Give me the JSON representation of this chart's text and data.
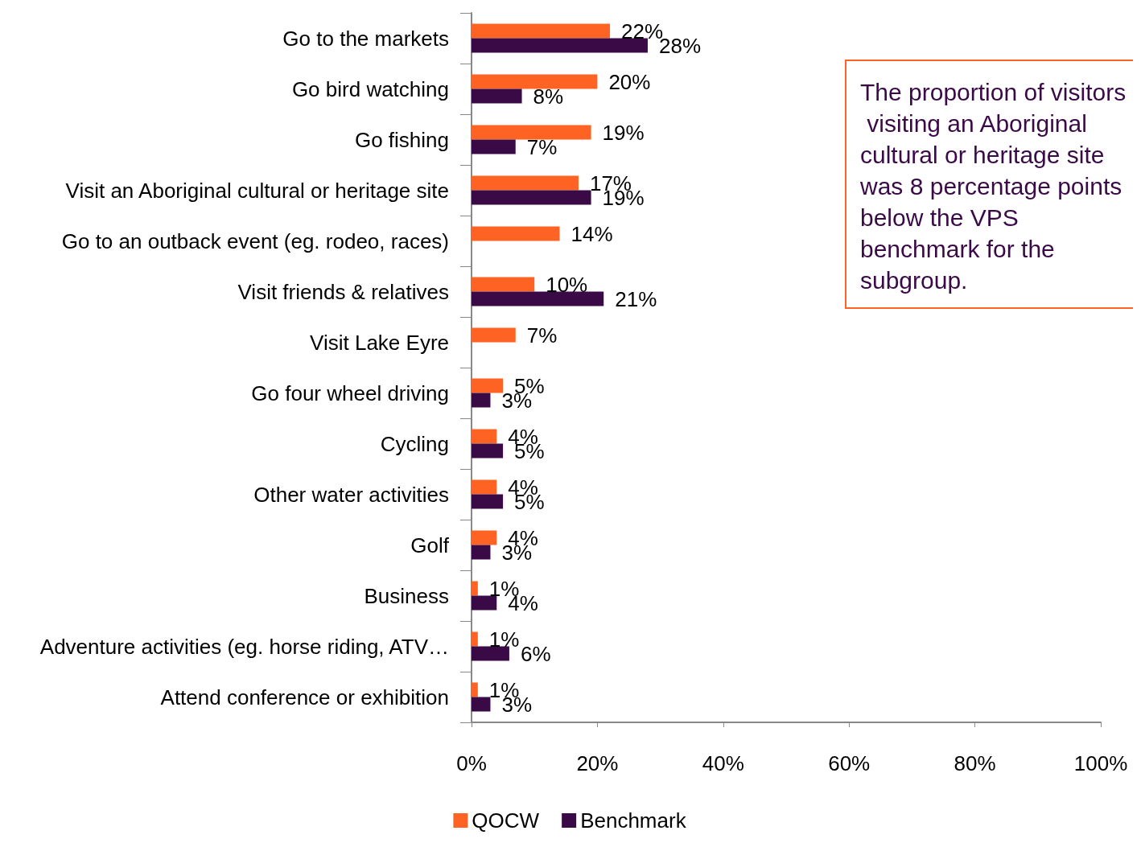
{
  "chart_data": {
    "type": "bar",
    "orientation": "horizontal",
    "categories": [
      "Go to the markets",
      "Go bird watching",
      "Go fishing",
      "Visit an Aboriginal cultural or heritage site",
      "Go to an outback event (eg. rodeo, races)",
      "Visit friends & relatives",
      "Visit Lake Eyre",
      "Go four wheel driving",
      "Cycling",
      "Other water activities",
      "Golf",
      "Business",
      "Adventure activities (eg. horse riding, ATV…",
      "Attend conference or exhibition"
    ],
    "series": [
      {
        "name": "QOCW",
        "color": "#ff6323",
        "values": [
          22,
          20,
          19,
          17,
          14,
          10,
          7,
          5,
          4,
          4,
          4,
          1,
          1,
          1
        ],
        "value_labels": [
          "22%",
          "20%",
          "19%",
          "17%",
          "14%",
          "10%",
          "7%",
          "5%",
          "4%",
          "4%",
          "4%",
          "1%",
          "1%",
          "1%"
        ]
      },
      {
        "name": "Benchmark",
        "color": "#3a0a47",
        "values": [
          28,
          8,
          7,
          19,
          null,
          21,
          null,
          3,
          5,
          5,
          3,
          4,
          6,
          3
        ],
        "value_labels": [
          "28%",
          "8%",
          "7%",
          "19%",
          null,
          "21%",
          null,
          "3%",
          "5%",
          "5%",
          "3%",
          "4%",
          "6%",
          "3%"
        ]
      }
    ],
    "xlim": [
      0,
      100
    ],
    "xticks": [
      {
        "value": 0,
        "label": "0%"
      },
      {
        "value": 20,
        "label": "20%"
      },
      {
        "value": 40,
        "label": "40%"
      },
      {
        "value": 60,
        "label": "60%"
      },
      {
        "value": 80,
        "label": "80%"
      },
      {
        "value": 100,
        "label": "100%"
      }
    ],
    "grid": false,
    "legend": "bottom",
    "annotations": [
      "The proportion of visitors visiting an Aboriginal cultural or heritage site was 8 percentage points below the VPS benchmark for the subgroup."
    ]
  }
}
